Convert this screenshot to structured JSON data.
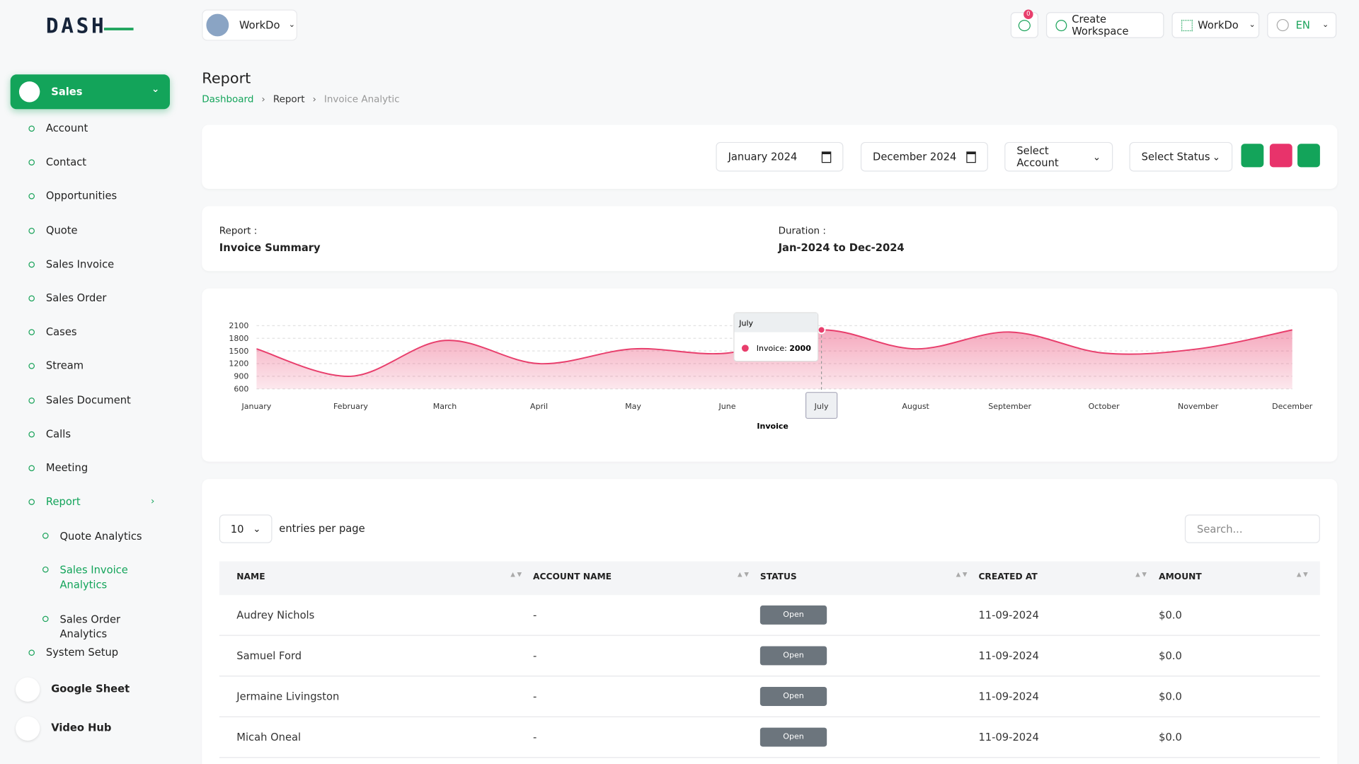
{
  "brand": "DASH",
  "topbar": {
    "workspace": "WorkDo",
    "notifications": "0",
    "create": "Create Workspace",
    "user": "WorkDo",
    "lang": "EN"
  },
  "sidebar": {
    "active": "Sales",
    "items": [
      "Account",
      "Contact",
      "Opportunities",
      "Quote",
      "Sales Invoice",
      "Sales Order",
      "Cases",
      "Stream",
      "Sales Document",
      "Calls",
      "Meeting"
    ],
    "report": "Report",
    "report_items": [
      "Quote Analytics",
      "Sales Invoice Analytics",
      "Sales Order Analytics"
    ],
    "after": "System Setup",
    "apps": [
      "Google Sheet",
      "Video Hub"
    ]
  },
  "page": {
    "title": "Report",
    "breadcrumb": [
      "Dashboard",
      "Report",
      "Invoice Analytic"
    ]
  },
  "filters": {
    "start": "January 2024",
    "end": "December 2024",
    "account": "Select Account",
    "status": "Select Status"
  },
  "summary": {
    "report_label": "Report :",
    "report": "Invoice Summary",
    "duration_label": "Duration :",
    "duration": "Jan-2024 to Dec-2024"
  },
  "chart_data": {
    "type": "area",
    "x_label": "Invoice",
    "categories": [
      "January",
      "February",
      "March",
      "April",
      "May",
      "June",
      "July",
      "August",
      "September",
      "October",
      "November",
      "December"
    ],
    "series": [
      {
        "name": "Invoice",
        "color": "#e83e6c",
        "values": [
          1550,
          900,
          1750,
          1200,
          1550,
          1450,
          2000,
          1550,
          1950,
          1450,
          1550,
          2000
        ]
      }
    ],
    "ylim": [
      600,
      2100
    ],
    "yticks": [
      600,
      900,
      1200,
      1500,
      1800,
      2100
    ],
    "grid": true,
    "tooltip_category": "July",
    "tooltip_label": "Invoice:"
  },
  "table": {
    "page_size": "10",
    "entries_label": "entries per page",
    "search_placeholder": "Search...",
    "columns": [
      "NAME",
      "ACCOUNT NAME",
      "STATUS",
      "CREATED AT",
      "AMOUNT"
    ],
    "rows": [
      [
        "Audrey Nichols",
        "-",
        "Open",
        "11-09-2024",
        "$0.0"
      ],
      [
        "Samuel Ford",
        "-",
        "Open",
        "11-09-2024",
        "$0.0"
      ],
      [
        "Jermaine Livingston",
        "-",
        "Open",
        "11-09-2024",
        "$0.0"
      ],
      [
        "Micah Oneal",
        "-",
        "Open",
        "11-09-2024",
        "$0.0"
      ]
    ]
  }
}
